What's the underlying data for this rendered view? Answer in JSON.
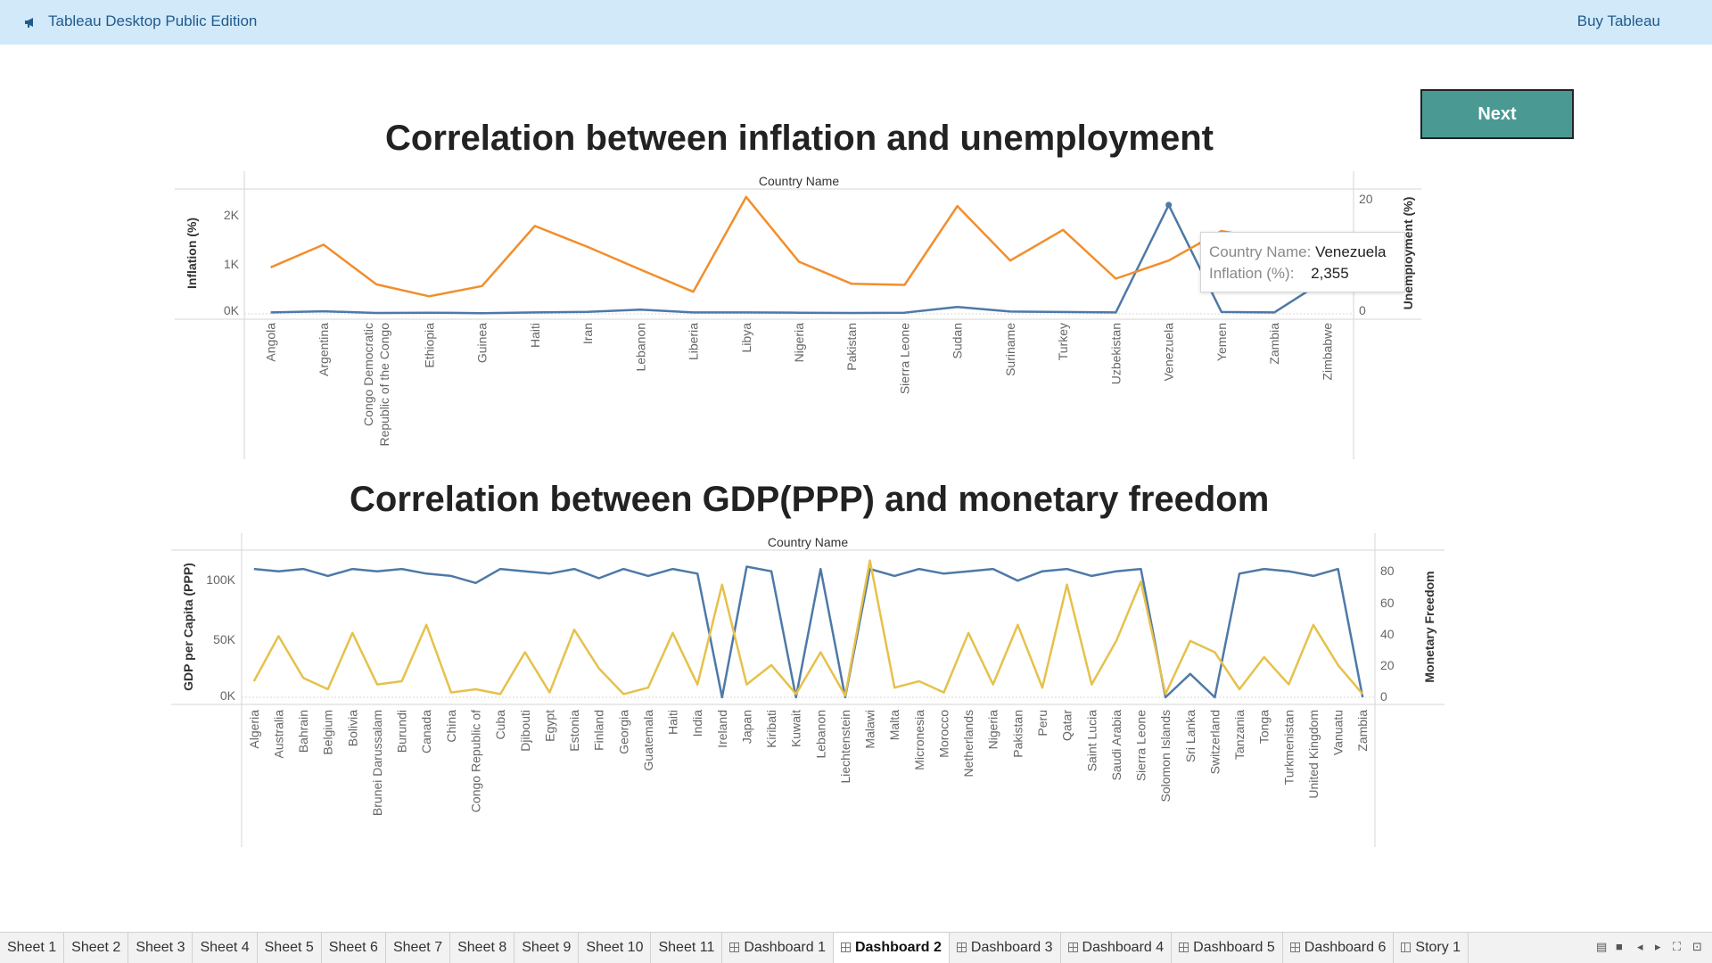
{
  "app": {
    "title": "Tableau Desktop Public Edition",
    "buy_label": "Buy Tableau",
    "icon": "megaphone-icon"
  },
  "next_button": {
    "label": "Next"
  },
  "charts": {
    "top": {
      "title": "Correlation between inflation and unemployment",
      "header": "Country Name",
      "left_axis_title": "Inflation (%)",
      "right_axis_title": "Unemployment (%)",
      "left_ticks": [
        "2K",
        "1K",
        "0K"
      ],
      "right_ticks": [
        "20",
        "0"
      ]
    },
    "bottom": {
      "title": "Correlation between GDP(PPP) and monetary freedom",
      "header": "Country Name",
      "left_axis_title": "GDP per Capita (PPP)",
      "right_axis_title": "Monetary Freedom",
      "left_ticks": [
        "100K",
        "50K",
        "0K"
      ],
      "right_ticks": [
        "80",
        "60",
        "40",
        "20",
        "0"
      ]
    }
  },
  "tooltip": {
    "label1": "Country Name:",
    "value1": "Venezuela",
    "label2": "Inflation (%):",
    "value2": "2,355"
  },
  "chart_data": [
    {
      "type": "line",
      "title": "Correlation between inflation and unemployment",
      "x_header": "Country Name",
      "categories": [
        "Angola",
        "Argentina",
        "Congo Democratic Republic of the Congo",
        "Ethiopia",
        "Guinea",
        "Haiti",
        "Iran",
        "Lebanon",
        "Liberia",
        "Libya",
        "Nigeria",
        "Pakistan",
        "Sierra Leone",
        "Sudan",
        "Suriname",
        "Turkey",
        "Uzbekistan",
        "Venezuela",
        "Yemen",
        "Zambia",
        "Zimbabwe"
      ],
      "series": [
        {
          "name": "Inflation (%)",
          "axis": "left",
          "color": "#4e79a7",
          "values": [
            30,
            55,
            20,
            25,
            15,
            30,
            45,
            90,
            30,
            30,
            25,
            20,
            25,
            150,
            50,
            40,
            30,
            2355,
            40,
            30,
            760
          ]
        },
        {
          "name": "Unemployment (%)",
          "axis": "right",
          "color": "#f28e2b",
          "values": [
            8.2,
            12.2,
            5.2,
            3.1,
            4.9,
            15.5,
            11.8,
            7.8,
            3.9,
            20.6,
            9.2,
            5.3,
            5.1,
            19.0,
            9.4,
            14.8,
            6.2,
            9.4,
            14.6,
            13.0,
            7.8
          ]
        }
      ],
      "left_ylim": [
        0,
        2700
      ],
      "right_ylim": [
        0,
        22
      ],
      "y_left_label": "Inflation (%)",
      "y_right_label": "Unemployment (%)"
    },
    {
      "type": "line",
      "title": "Correlation between GDP(PPP) and monetary freedom",
      "x_header": "Country Name",
      "categories": [
        "Algeria",
        "Australia",
        "Bahrain",
        "Belgium",
        "Bolivia",
        "Brunei Darussalam",
        "Burundi",
        "Canada",
        "China",
        "Congo Republic of",
        "Cuba",
        "Djibouti",
        "Egypt",
        "Estonia",
        "Finland",
        "Georgia",
        "Guatemala",
        "Haiti",
        "India",
        "Ireland",
        "Japan",
        "Kiribati",
        "Kuwait",
        "Lebanon",
        "Liechtenstein",
        "Malawi",
        "Malta",
        "Micronesia",
        "Morocco",
        "Netherlands",
        "Nigeria",
        "Pakistan",
        "Peru",
        "Qatar",
        "Saint Lucia",
        "Saudi Arabia",
        "Sierra Leone",
        "Solomon Islands",
        "Sri Lanka",
        "Switzerland",
        "Tanzania",
        "Tonga",
        "Turkmenistan",
        "United Kingdom",
        "Vanuatu",
        "Zambia"
      ],
      "series": [
        {
          "name": "GDP per Capita (PPP)",
          "axis": "left",
          "color": "#4e79a7",
          "values": [
            110000,
            108000,
            110000,
            104000,
            110000,
            108000,
            110000,
            106000,
            104000,
            98000,
            110000,
            108000,
            106000,
            110000,
            102000,
            110000,
            104000,
            110000,
            106000,
            0,
            112000,
            108000,
            0,
            110000,
            0,
            110000,
            104000,
            110000,
            106000,
            108000,
            110000,
            100000,
            108000,
            110000,
            104000,
            108000,
            110000,
            0,
            20000,
            0,
            106000,
            110000,
            108000,
            104000,
            110000,
            0
          ]
        },
        {
          "name": "Monetary Freedom",
          "axis": "right",
          "color": "#e6c14b",
          "values": [
            10,
            38,
            12,
            5,
            40,
            8,
            10,
            45,
            3,
            5,
            2,
            28,
            3,
            42,
            18,
            2,
            6,
            40,
            8,
            70,
            8,
            20,
            2,
            28,
            1,
            85,
            6,
            10,
            3,
            40,
            8,
            45,
            6,
            70,
            8,
            35,
            72,
            2,
            35,
            28,
            5,
            25,
            8,
            45,
            20,
            2
          ]
        }
      ],
      "left_ylim": [
        0,
        120000
      ],
      "right_ylim": [
        0,
        87
      ],
      "y_left_label": "GDP per Capita (PPP)",
      "y_right_label": "Monetary Freedom"
    }
  ],
  "tabs": [
    {
      "label": "Sheet 1",
      "kind": "sheet"
    },
    {
      "label": "Sheet 2",
      "kind": "sheet"
    },
    {
      "label": "Sheet 3",
      "kind": "sheet"
    },
    {
      "label": "Sheet 4",
      "kind": "sheet"
    },
    {
      "label": "Sheet 5",
      "kind": "sheet"
    },
    {
      "label": "Sheet 6",
      "kind": "sheet"
    },
    {
      "label": "Sheet 7",
      "kind": "sheet"
    },
    {
      "label": "Sheet 8",
      "kind": "sheet"
    },
    {
      "label": "Sheet 9",
      "kind": "sheet"
    },
    {
      "label": "Sheet 10",
      "kind": "sheet"
    },
    {
      "label": "Sheet 11",
      "kind": "sheet"
    },
    {
      "label": "Dashboard 1",
      "kind": "dashboard"
    },
    {
      "label": "Dashboard 2",
      "kind": "dashboard",
      "active": true
    },
    {
      "label": "Dashboard 3",
      "kind": "dashboard"
    },
    {
      "label": "Dashboard 4",
      "kind": "dashboard"
    },
    {
      "label": "Dashboard 5",
      "kind": "dashboard"
    },
    {
      "label": "Dashboard 6",
      "kind": "dashboard"
    },
    {
      "label": "Story 1",
      "kind": "story"
    }
  ]
}
